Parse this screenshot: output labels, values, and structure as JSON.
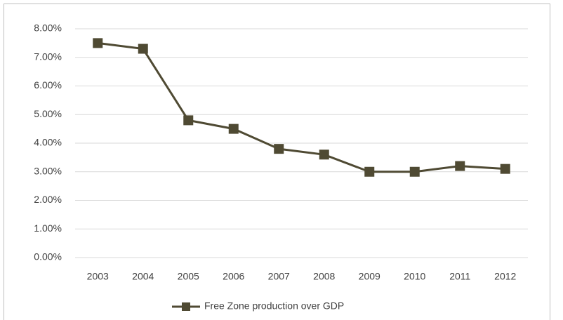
{
  "chart_data": {
    "type": "line",
    "categories": [
      "2003",
      "2004",
      "2005",
      "2006",
      "2007",
      "2008",
      "2009",
      "2010",
      "2011",
      "2012"
    ],
    "series": [
      {
        "name": "Free Zone production over GDP",
        "color": "#4f4a33",
        "values": [
          7.5,
          7.3,
          4.8,
          4.5,
          3.8,
          3.6,
          3.0,
          3.0,
          3.2,
          3.1
        ]
      }
    ],
    "ylim": [
      0,
      8
    ],
    "yticks": [
      {
        "value": 0,
        "label": "0.00%"
      },
      {
        "value": 1,
        "label": "1.00%"
      },
      {
        "value": 2,
        "label": "2.00%"
      },
      {
        "value": 3,
        "label": "3.00%"
      },
      {
        "value": 4,
        "label": "4.00%"
      },
      {
        "value": 5,
        "label": "5.00%"
      },
      {
        "value": 6,
        "label": "6.00%"
      },
      {
        "value": 7,
        "label": "7.00%"
      },
      {
        "value": 8,
        "label": "8.00%"
      }
    ],
    "grid": true,
    "legend": "bottom"
  }
}
